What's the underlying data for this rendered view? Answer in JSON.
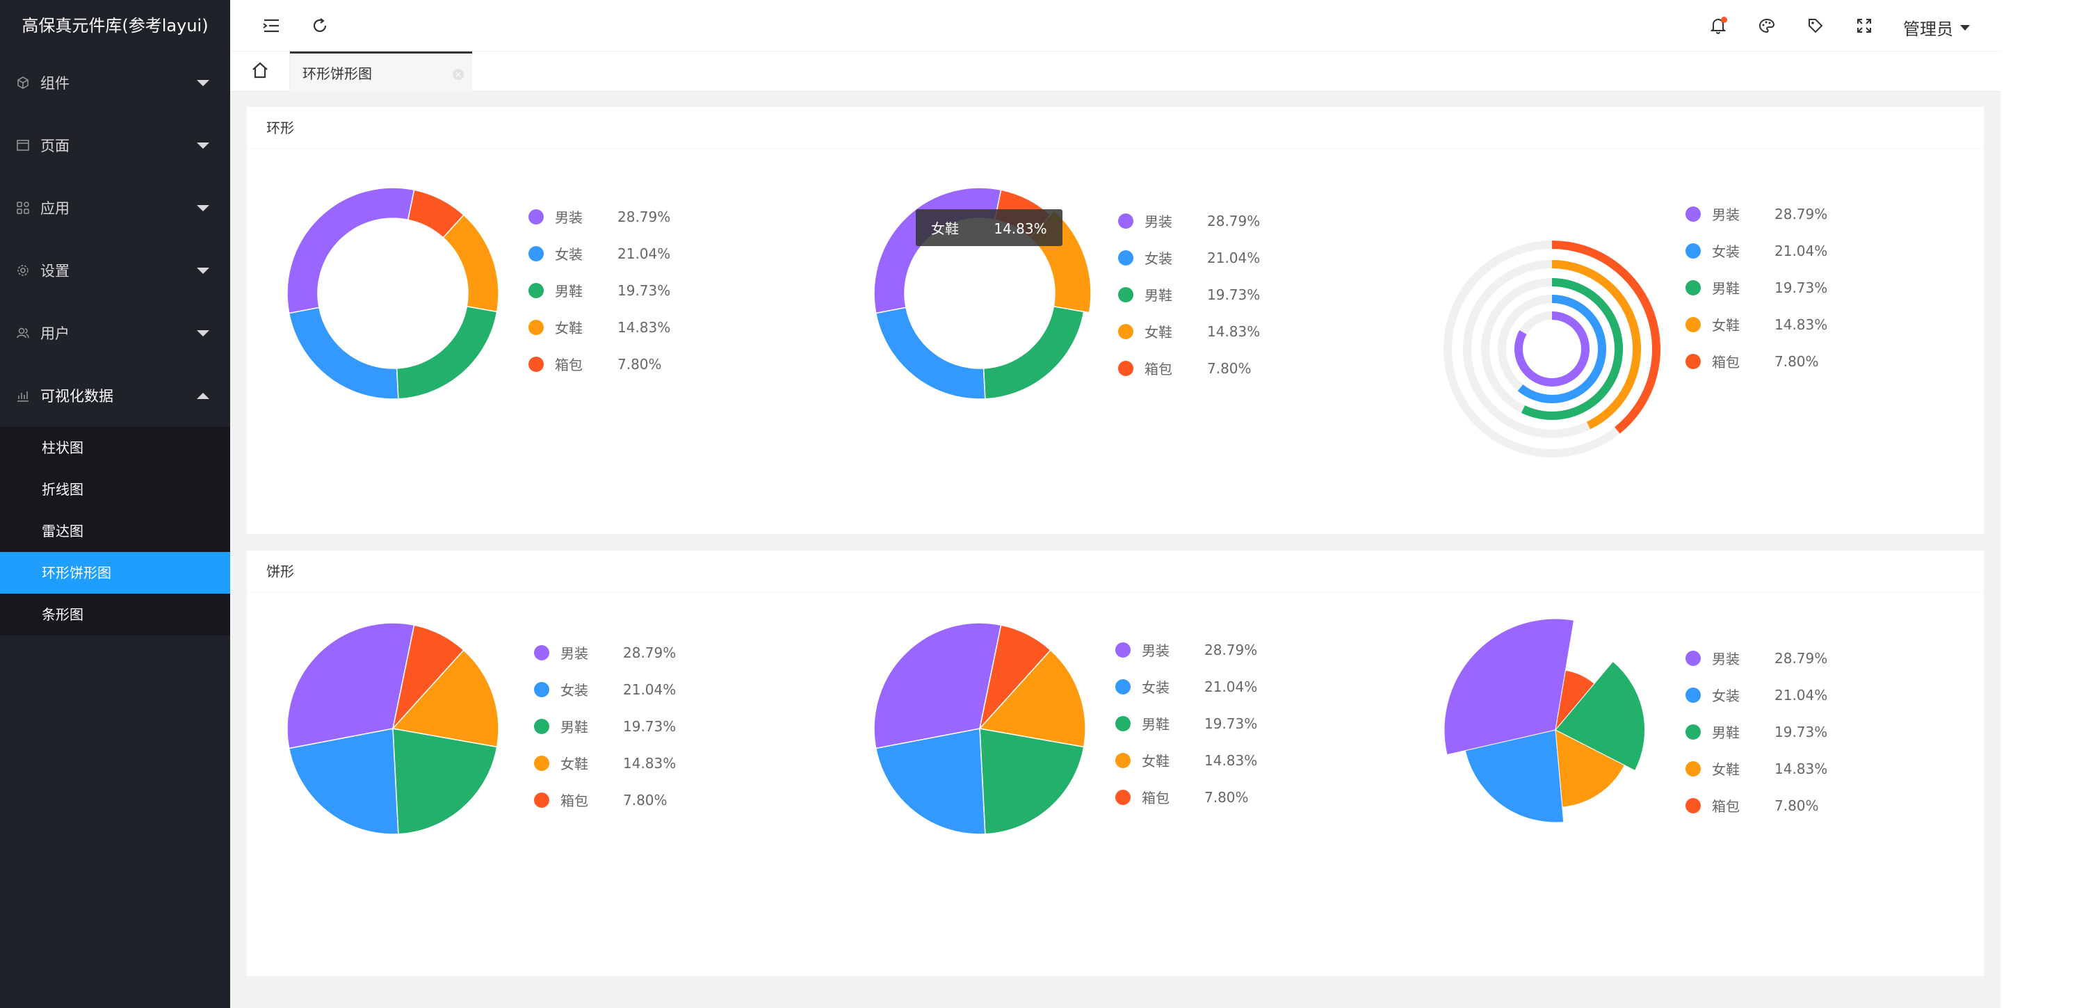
{
  "app": {
    "title": "高保真元件库(参考layui)"
  },
  "colors": {
    "purple": "#9966ff",
    "blue": "#3399ff",
    "green": "#22b06b",
    "orange": "#ff9a0e",
    "red": "#ff5722",
    "sidebar": "#20222a",
    "active": "#1e9fff"
  },
  "sidebar": {
    "menus": [
      {
        "label": "组件",
        "icon": "cube-icon"
      },
      {
        "label": "页面",
        "icon": "window-icon"
      },
      {
        "label": "应用",
        "icon": "apps-grid-icon"
      },
      {
        "label": "设置",
        "icon": "gear-icon"
      },
      {
        "label": "用户",
        "icon": "users-icon"
      },
      {
        "label": "可视化数据",
        "icon": "chart-icon"
      }
    ],
    "submenu": [
      {
        "label": "柱状图"
      },
      {
        "label": "折线图"
      },
      {
        "label": "雷达图"
      },
      {
        "label": "环形饼形图"
      },
      {
        "label": "条形图"
      }
    ]
  },
  "header": {
    "icons": [
      "menu-toggle-icon",
      "refresh-icon",
      "bell-icon",
      "palette-icon",
      "tag-icon",
      "fullscreen-icon"
    ],
    "user": "管理员"
  },
  "tabs": [
    {
      "label": "环形饼形图"
    }
  ],
  "cards": [
    {
      "title": "环形"
    },
    {
      "title": "饼形"
    }
  ],
  "tooltip": {
    "name": "女鞋",
    "value": "14.83%"
  },
  "legend": [
    {
      "name": "男装",
      "value": "28.79%",
      "color": "#9966ff"
    },
    {
      "name": "女装",
      "value": "21.04%",
      "color": "#3399ff"
    },
    {
      "name": "男鞋",
      "value": "19.73%",
      "color": "#22b06b"
    },
    {
      "name": "女鞋",
      "value": "14.83%",
      "color": "#ff9a0e"
    },
    {
      "name": "箱包",
      "value": "7.80%",
      "color": "#ff5722"
    }
  ],
  "chart_data": [
    {
      "type": "pie",
      "variant": "donut",
      "title": "",
      "categories": [
        "男装",
        "女装",
        "男鞋",
        "女鞋",
        "箱包"
      ],
      "values": [
        28.79,
        21.04,
        19.73,
        14.83,
        7.8
      ]
    },
    {
      "type": "pie",
      "variant": "donut",
      "title": "",
      "categories": [
        "男装",
        "女装",
        "男鞋",
        "女鞋",
        "箱包"
      ],
      "values": [
        28.79,
        21.04,
        19.73,
        14.83,
        7.8
      ],
      "highlighted": "女鞋"
    },
    {
      "type": "pie",
      "variant": "radial-rings",
      "title": "",
      "categories": [
        "男装",
        "女装",
        "男鞋",
        "女鞋",
        "箱包"
      ],
      "values": [
        28.79,
        21.04,
        19.73,
        14.83,
        7.8
      ]
    },
    {
      "type": "pie",
      "title": "",
      "categories": [
        "男装",
        "女装",
        "男鞋",
        "女鞋",
        "箱包"
      ],
      "values": [
        28.79,
        21.04,
        19.73,
        14.83,
        7.8
      ]
    },
    {
      "type": "pie",
      "title": "",
      "categories": [
        "男装",
        "女装",
        "男鞋",
        "女鞋",
        "箱包"
      ],
      "values": [
        28.79,
        21.04,
        19.73,
        14.83,
        7.8
      ]
    },
    {
      "type": "pie",
      "variant": "rose",
      "title": "",
      "categories": [
        "男装",
        "女装",
        "男鞋",
        "女鞋",
        "箱包"
      ],
      "values": [
        28.79,
        21.04,
        19.73,
        14.83,
        7.8
      ]
    }
  ]
}
